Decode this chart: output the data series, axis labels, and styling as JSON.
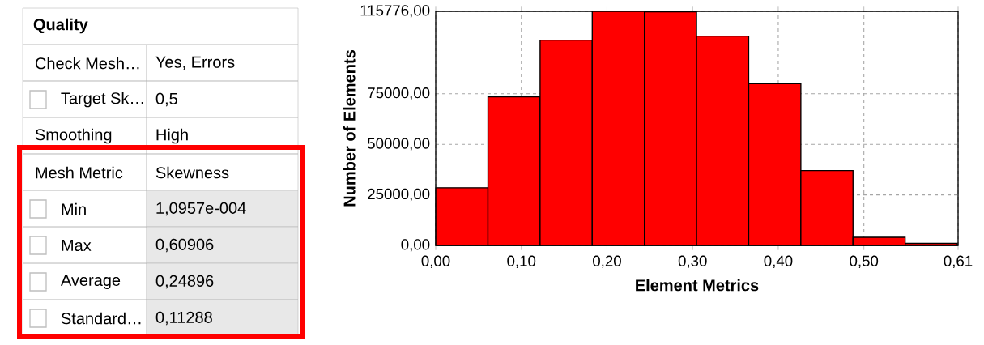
{
  "chart_data": [
    {
      "type": "other",
      "title": "Quality",
      "annotations": [
        "Check Mesh…",
        "Yes, Errors",
        "Target Sk…",
        "0,5",
        "Smoothing",
        "High",
        "Mesh Metric",
        "Skewness",
        "Min",
        "1,0957e-004",
        "Max",
        "0,60906",
        "Average",
        "0,24896",
        "Standard…",
        "0,11288"
      ]
    },
    {
      "type": "histogram",
      "xlabel": "Element Metrics",
      "ylabel": "Number of Elements",
      "color": "#ff0000",
      "bins": [
        0.0001,
        0.061,
        0.1219,
        0.1828,
        0.2437,
        0.3046,
        0.3655,
        0.4264,
        0.4873,
        0.5482,
        0.6091
      ],
      "values": [
        28500,
        73500,
        101500,
        115776,
        115500,
        103500,
        80000,
        37000,
        4000,
        1000
      ],
      "xlim": [
        0,
        0.61
      ],
      "ylim": [
        0,
        115776
      ],
      "xticks": [
        {
          "value": 0,
          "label": "0,00"
        },
        {
          "value": 0.1,
          "label": "0,10"
        },
        {
          "value": 0.2,
          "label": "0,20"
        },
        {
          "value": 0.3,
          "label": "0,30"
        },
        {
          "value": 0.4,
          "label": "0,40"
        },
        {
          "value": 0.5,
          "label": "0,50"
        },
        {
          "value": 0.61,
          "label": "0,61"
        }
      ],
      "yticks": [
        {
          "value": 0,
          "label": "0,00"
        },
        {
          "value": 25000,
          "label": "25000,00"
        },
        {
          "value": 50000,
          "label": "50000,00"
        },
        {
          "value": 75000,
          "label": "75000,00"
        },
        {
          "value": 115776,
          "label": "115776,00"
        }
      ],
      "grid": true
    }
  ]
}
